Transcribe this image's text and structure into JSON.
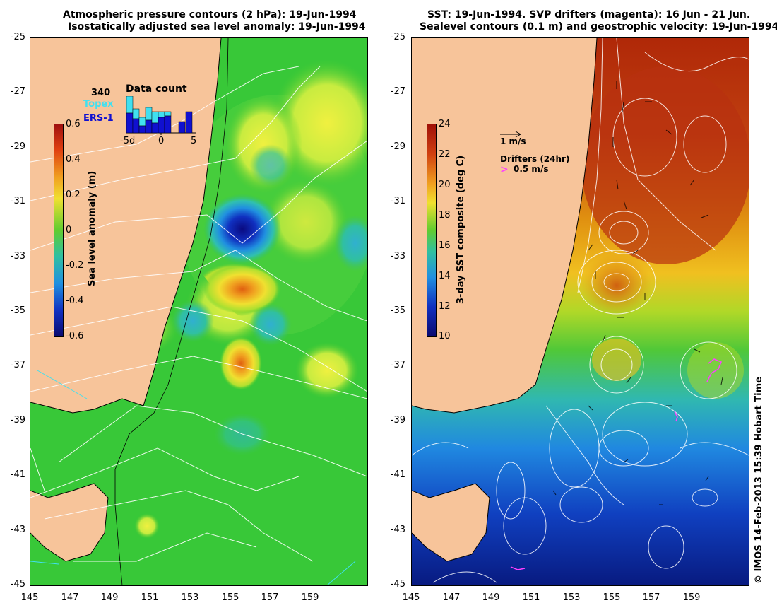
{
  "left": {
    "title_line1": "Atmospheric pressure contours (2 hPa): 19-Jun-1994",
    "title_line2": "Isostatically adjusted sea level anomaly: 19-Jun-1994",
    "colorbar_title": "Sea level anomaly (m)",
    "colorbar_ticks": [
      "0.6",
      "0.4",
      "0.2",
      "0",
      "-0.2",
      "-0.4",
      "-0.6"
    ],
    "colorbar_range": [
      -0.6,
      0.6
    ],
    "inset": {
      "count": "340",
      "title": "Data count",
      "topex_label": "Topex",
      "ers_label": "ERS-1",
      "x_ticks": [
        "-5d",
        "0",
        "5"
      ],
      "topex_color": "#40e0f0",
      "ers_color": "#1010d0"
    }
  },
  "right": {
    "title_line1": "SST: 19-Jun-1994. SVP drifters (magenta): 16 Jun - 21 Jun.",
    "title_line2": "Sealevel contours (0.1 m) and geostrophic velocity: 19-Jun-1994.",
    "colorbar_title": "3-day SST composite (deg C)",
    "colorbar_ticks": [
      "24",
      "22",
      "20",
      "18",
      "16",
      "14",
      "12",
      "10"
    ],
    "colorbar_range": [
      10,
      24
    ],
    "velocity_legend": "1 m/s",
    "drifters_title": "Drifters (24hr)",
    "drifters_legend": "0.5 m/s"
  },
  "axes": {
    "lat_ticks": [
      "-25",
      "-27",
      "-29",
      "-31",
      "-33",
      "-35",
      "-37",
      "-39",
      "-41",
      "-43",
      "-45"
    ],
    "lon_ticks": [
      "145",
      "147",
      "149",
      "151",
      "153",
      "155",
      "157",
      "159"
    ]
  },
  "credit": "© IMOS 14-Feb-2013 15:39 Hobart Time",
  "colors": {
    "land": "#f7c49a",
    "sla_neutral": "#2fcc2f",
    "drifter": "#ff40ff"
  }
}
